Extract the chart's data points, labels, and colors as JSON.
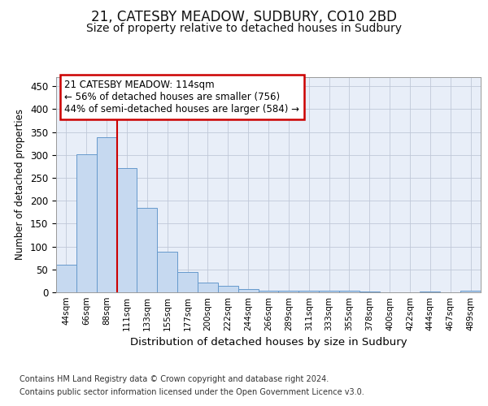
{
  "title1": "21, CATESBY MEADOW, SUDBURY, CO10 2BD",
  "title2": "Size of property relative to detached houses in Sudbury",
  "xlabel": "Distribution of detached houses by size in Sudbury",
  "ylabel": "Number of detached properties",
  "bar_color": "#c6d9f0",
  "bar_edge_color": "#6699cc",
  "vline_color": "#cc0000",
  "vline_x": 3.0,
  "annotation_line1": "21 CATESBY MEADOW: 114sqm",
  "annotation_line2": "← 56% of detached houses are smaller (756)",
  "annotation_line3": "44% of semi-detached houses are larger (584) →",
  "annotation_box_color": "#ffffff",
  "annotation_box_edge": "#cc0000",
  "categories": [
    "44sqm",
    "66sqm",
    "88sqm",
    "111sqm",
    "133sqm",
    "155sqm",
    "177sqm",
    "200sqm",
    "222sqm",
    "244sqm",
    "266sqm",
    "289sqm",
    "311sqm",
    "333sqm",
    "355sqm",
    "378sqm",
    "400sqm",
    "422sqm",
    "444sqm",
    "467sqm",
    "489sqm"
  ],
  "values": [
    60,
    301,
    338,
    272,
    184,
    88,
    45,
    22,
    15,
    7,
    4,
    4,
    3,
    3,
    4,
    1,
    0,
    0,
    2,
    0,
    3
  ],
  "ylim": [
    0,
    470
  ],
  "yticks": [
    0,
    50,
    100,
    150,
    200,
    250,
    300,
    350,
    400,
    450
  ],
  "footer1": "Contains HM Land Registry data © Crown copyright and database right 2024.",
  "footer2": "Contains public sector information licensed under the Open Government Licence v3.0.",
  "background_color": "#ffffff",
  "plot_bg_color": "#e8eef8",
  "grid_color": "#c0c8d8",
  "title_fontsize": 12,
  "subtitle_fontsize": 10,
  "footer_fontsize": 7
}
